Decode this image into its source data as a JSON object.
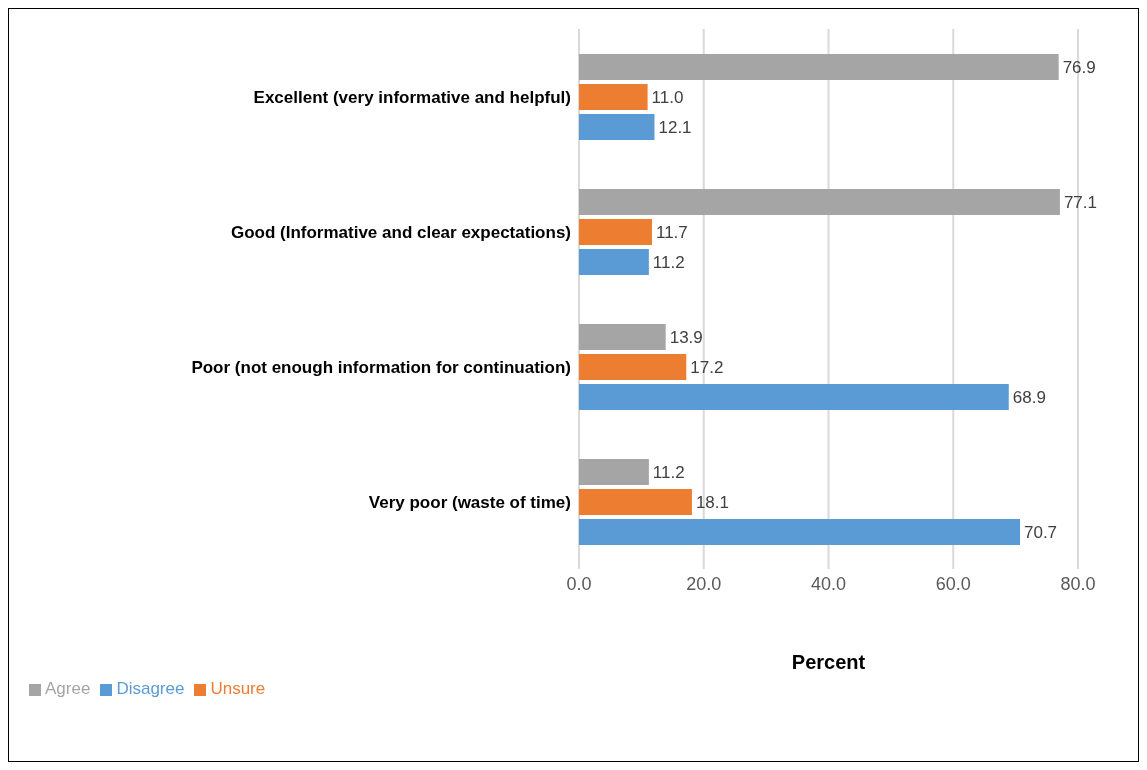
{
  "chart_data": {
    "type": "bar",
    "orientation": "horizontal",
    "xlabel": "Percent",
    "categories": [
      "Excellent (very informative and helpful)",
      "Good (Informative and clear expectations)",
      "Poor (not enough information for continuation)",
      "Very poor (waste of time)"
    ],
    "series": [
      {
        "name": "Agree",
        "color": "#a5a5a5",
        "values": [
          76.9,
          77.1,
          13.9,
          11.2
        ],
        "value_labels": [
          "76.9",
          "77.1",
          "13.9",
          "11.2"
        ]
      },
      {
        "name": "Unsure",
        "color": "#ed7d31",
        "values": [
          11.0,
          11.7,
          17.2,
          18.1
        ],
        "value_labels": [
          "11.0",
          "11.7",
          "17.2",
          "18.1"
        ]
      },
      {
        "name": "Disagree",
        "color": "#5b9bd5",
        "values": [
          12.1,
          11.2,
          68.9,
          70.7
        ],
        "value_labels": [
          "12.1",
          "11.2",
          "68.9",
          "70.7"
        ]
      }
    ],
    "xlim": [
      0,
      80
    ],
    "xticks": [
      {
        "value": 0,
        "label": "0.0"
      },
      {
        "value": 20,
        "label": "20.0"
      },
      {
        "value": 40,
        "label": "40.0"
      },
      {
        "value": 60,
        "label": "60.0"
      },
      {
        "value": 80,
        "label": "80.0"
      }
    ],
    "grid": "x",
    "legend": "bottom left"
  }
}
